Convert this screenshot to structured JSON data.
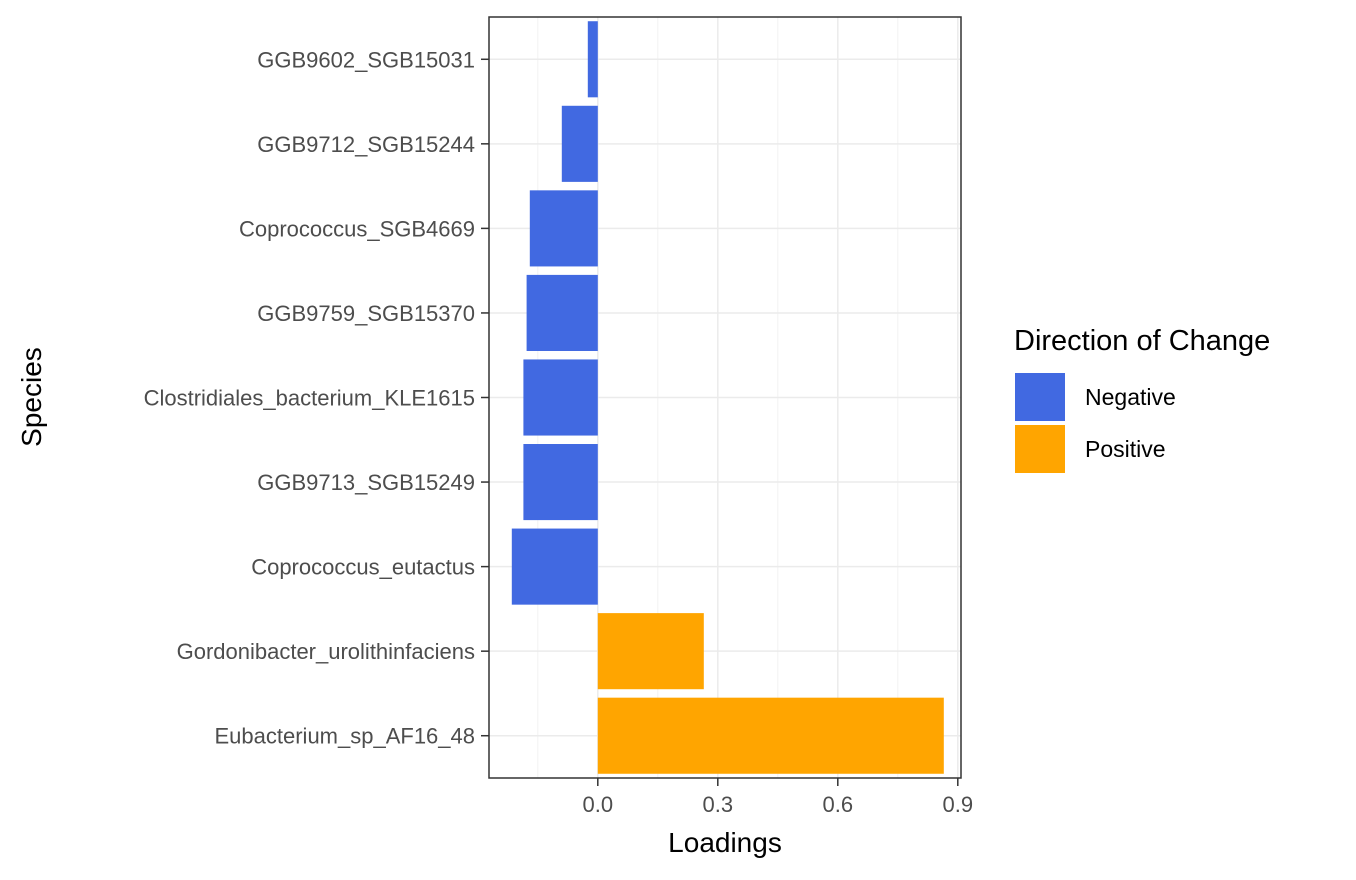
{
  "chart_data": {
    "type": "bar",
    "orientation": "horizontal",
    "categories": [
      "GGB9602_SGB15031",
      "GGB9712_SGB15244",
      "Coprococcus_SGB4669",
      "GGB9759_SGB15370",
      "Clostridiales_bacterium_KLE1615",
      "GGB9713_SGB15249",
      "Coprococcus_eutactus",
      "Gordonibacter_urolithinfaciens",
      "Eubacterium_sp_AF16_48"
    ],
    "values": [
      -0.025,
      -0.09,
      -0.17,
      -0.178,
      -0.186,
      -0.186,
      -0.215,
      0.265,
      0.865
    ],
    "directions": [
      "Negative",
      "Negative",
      "Negative",
      "Negative",
      "Negative",
      "Negative",
      "Negative",
      "Positive",
      "Positive"
    ],
    "xlabel": "Loadings",
    "ylabel": "Species",
    "xlim": [
      -0.272,
      0.908
    ],
    "xticks": [
      "0.0",
      "0.3",
      "0.6",
      "0.9"
    ],
    "xtick_values": [
      0.0,
      0.3,
      0.6,
      0.9
    ],
    "grid": true,
    "legend": {
      "title": "Direction of Change",
      "placement": "right",
      "entries": [
        {
          "label": "Negative",
          "color": "#4169e1"
        },
        {
          "label": "Positive",
          "color": "#ffa500"
        }
      ]
    },
    "colors": {
      "Negative": "#4169e1",
      "Positive": "#ffa500"
    }
  }
}
